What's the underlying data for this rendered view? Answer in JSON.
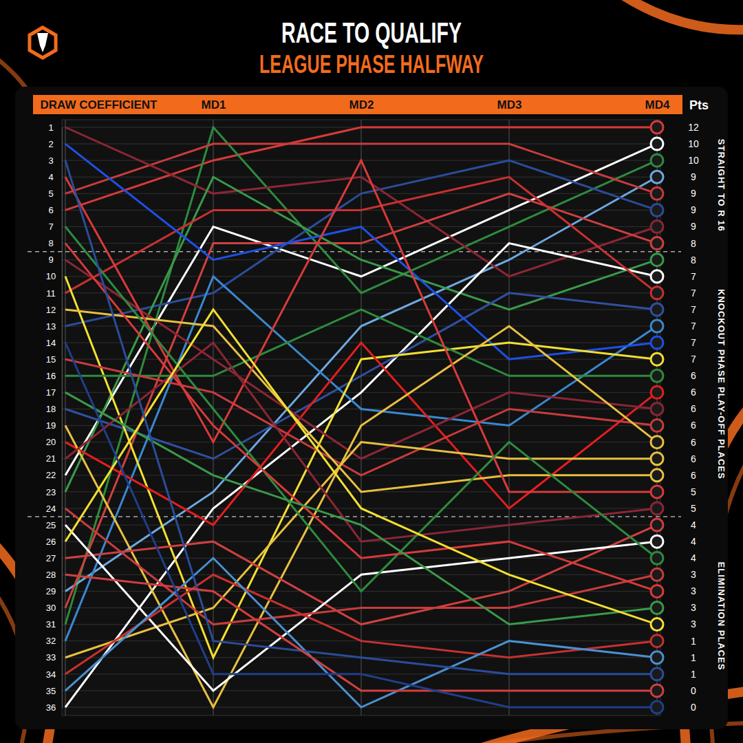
{
  "chart_data": {
    "type": "line",
    "title": "RACE TO QUALIFY",
    "subtitle": "LEAGUE PHASE HALFWAY",
    "categories": [
      "DRAW COEFFICIENT",
      "MD1",
      "MD2",
      "MD3",
      "MD4"
    ],
    "points_label": "Pts",
    "ylim": [
      1,
      36
    ],
    "yticks": [
      1,
      2,
      3,
      4,
      5,
      6,
      7,
      8,
      9,
      10,
      11,
      12,
      13,
      14,
      15,
      16,
      17,
      18,
      19,
      20,
      21,
      22,
      23,
      24,
      25,
      26,
      27,
      28,
      29,
      30,
      31,
      32,
      33,
      34,
      35,
      36
    ],
    "grid": true,
    "dividers": [
      8.5,
      24.5
    ],
    "zones": [
      {
        "label": "STRAIGHT TO R 16",
        "range": [
          1,
          8
        ]
      },
      {
        "label": "KNOCKOUT PHASE PLAY-OFF PLACES",
        "range": [
          9,
          24
        ]
      },
      {
        "label": "ELIMINATION PLACES",
        "range": [
          25,
          36
        ]
      }
    ],
    "series": [
      {
        "color": "#d83a3a",
        "values": [
          6,
          3,
          1,
          1,
          1
        ],
        "points": 12
      },
      {
        "color": "#ffffff",
        "values": [
          22,
          7,
          10,
          6,
          2
        ],
        "points": 10
      },
      {
        "color": "#2e8b3e",
        "values": [
          31,
          1,
          11,
          7,
          3
        ],
        "points": 10
      },
      {
        "color": "#6fa8e0",
        "values": [
          29,
          23,
          13,
          9,
          4
        ],
        "points": 9
      },
      {
        "color": "#c83c3c",
        "values": [
          5,
          2,
          2,
          2,
          5
        ],
        "points": 9
      },
      {
        "color": "#2a4d9a",
        "values": [
          13,
          11,
          5,
          3,
          6
        ],
        "points": 9
      },
      {
        "color": "#8b2635",
        "values": [
          1,
          5,
          4,
          10,
          7
        ],
        "points": 9
      },
      {
        "color": "#d04040",
        "values": [
          30,
          8,
          8,
          5,
          8
        ],
        "points": 8
      },
      {
        "color": "#3a9a4a",
        "values": [
          23,
          4,
          9,
          12,
          9
        ],
        "points": 8
      },
      {
        "color": "#ffffff",
        "values": [
          36,
          24,
          17,
          8,
          10
        ],
        "points": 7
      },
      {
        "color": "#c83030",
        "values": [
          11,
          6,
          6,
          4,
          11
        ],
        "points": 7
      },
      {
        "color": "#3050a0",
        "values": [
          18,
          21,
          16,
          11,
          12
        ],
        "points": 7
      },
      {
        "color": "#3a88d0",
        "values": [
          32,
          10,
          18,
          19,
          13
        ],
        "points": 7
      },
      {
        "color": "#1e50e6",
        "values": [
          2,
          9,
          7,
          15,
          14
        ],
        "points": 7
      },
      {
        "color": "#f2e030",
        "values": [
          10,
          33,
          15,
          14,
          15
        ],
        "points": 7
      },
      {
        "color": "#2e8b3e",
        "values": [
          16,
          16,
          12,
          16,
          16
        ],
        "points": 6
      },
      {
        "color": "#e41e1e",
        "values": [
          20,
          25,
          14,
          24,
          17
        ],
        "points": 6
      },
      {
        "color": "#8b2635",
        "values": [
          9,
          15,
          21,
          17,
          18
        ],
        "points": 6
      },
      {
        "color": "#c83c3c",
        "values": [
          15,
          17,
          22,
          18,
          19
        ],
        "points": 6
      },
      {
        "color": "#e8c040",
        "values": [
          19,
          36,
          19,
          13,
          20
        ],
        "points": 6
      },
      {
        "color": "#e8c040",
        "values": [
          33,
          30,
          20,
          21,
          21
        ],
        "points": 6
      },
      {
        "color": "#e8c040",
        "values": [
          12,
          13,
          23,
          22,
          22
        ],
        "points": 6
      },
      {
        "color": "#d83a3a",
        "values": [
          4,
          20,
          3,
          23,
          23
        ],
        "points": 5
      },
      {
        "color": "#8b2635",
        "values": [
          21,
          14,
          26,
          25,
          24
        ],
        "points": 5
      },
      {
        "color": "#d04040",
        "values": [
          27,
          26,
          31,
          29,
          25
        ],
        "points": 4
      },
      {
        "color": "#ffffff",
        "values": [
          25,
          35,
          28,
          27,
          26
        ],
        "points": 4
      },
      {
        "color": "#2e8b3e",
        "values": [
          7,
          18,
          29,
          20,
          27
        ],
        "points": 4
      },
      {
        "color": "#c83c3c",
        "values": [
          24,
          31,
          30,
          30,
          28
        ],
        "points": 3
      },
      {
        "color": "#d83a3a",
        "values": [
          8,
          19,
          27,
          26,
          29
        ],
        "points": 3
      },
      {
        "color": "#3a9a4a",
        "values": [
          17,
          22,
          25,
          31,
          30
        ],
        "points": 3
      },
      {
        "color": "#f2e030",
        "values": [
          26,
          12,
          24,
          28,
          31
        ],
        "points": 3
      },
      {
        "color": "#c83030",
        "values": [
          34,
          28,
          32,
          33,
          32
        ],
        "points": 1
      },
      {
        "color": "#4a90d0",
        "values": [
          35,
          27,
          36,
          32,
          33
        ],
        "points": 1
      },
      {
        "color": "#2a4d9a",
        "values": [
          3,
          32,
          33,
          34,
          34
        ],
        "points": 1
      },
      {
        "color": "#d04040",
        "values": [
          28,
          29,
          35,
          35,
          35
        ],
        "points": 0
      },
      {
        "color": "#1f3f8a",
        "values": [
          14,
          34,
          34,
          36,
          36
        ],
        "points": 0
      }
    ]
  }
}
